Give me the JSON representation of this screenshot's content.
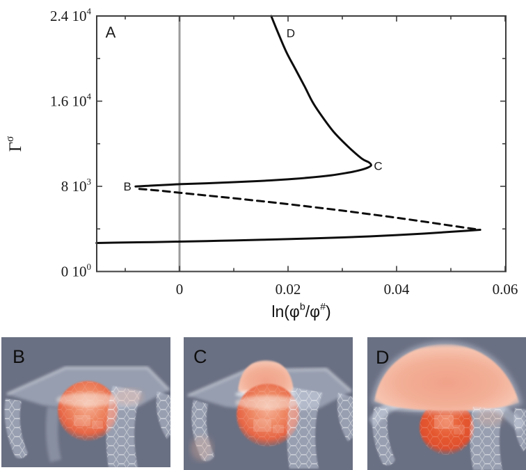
{
  "colors": {
    "background": "#ffffff",
    "curve": "#0d0d0d",
    "zero_line": "#9b9b9b",
    "frame": "#3c3c3c",
    "panel_background": "#6a7083",
    "droplet_red": "#e66545",
    "droplet_light": "#f6b197",
    "membrane": "#d5ddec"
  },
  "chart_data": {
    "type": "line",
    "title": "",
    "xlabel": "ln(φ^{b}/φ^{#})",
    "ylabel": "Γ^{σ}",
    "xlim": [
      -0.01526,
      0.06013
    ],
    "ylim": [
      0,
      24000
    ],
    "grid": false,
    "legend": "none",
    "vline_x": 0,
    "x_ticks": {
      "values": [
        0,
        0.02,
        0.04,
        0.06
      ],
      "labels": [
        "0",
        "0.02",
        "0.04",
        "0.06"
      ]
    },
    "x_minor_ticks": [
      -0.01,
      0.01,
      0.03,
      0.05
    ],
    "y_ticks": {
      "values": [
        0,
        8000,
        16000,
        24000
      ],
      "labels": [
        "0 10^{0}",
        "8 10^{3}",
        "1.6 10^{4}",
        "2.4 10^{4}"
      ]
    },
    "y_minor_ticks": [
      4000,
      12000,
      20000
    ],
    "series": [
      {
        "name": "stable-lower-branch",
        "style": "solid",
        "points": [
          [
            -0.0153,
            2680
          ],
          [
            -0.01,
            2725
          ],
          [
            -0.005,
            2765
          ],
          [
            0,
            2810
          ],
          [
            0.005,
            2860
          ],
          [
            0.01,
            2915
          ],
          [
            0.015,
            2975
          ],
          [
            0.02,
            3040
          ],
          [
            0.025,
            3115
          ],
          [
            0.03,
            3200
          ],
          [
            0.035,
            3300
          ],
          [
            0.04,
            3420
          ],
          [
            0.045,
            3560
          ],
          [
            0.05,
            3730
          ],
          [
            0.053,
            3830
          ],
          [
            0.0554,
            3920
          ]
        ]
      },
      {
        "name": "unstable-branch",
        "style": "dashed",
        "points": [
          [
            -0.0074,
            7760
          ],
          [
            -0.003,
            7560
          ],
          [
            0,
            7400
          ],
          [
            0.005,
            7140
          ],
          [
            0.01,
            6880
          ],
          [
            0.015,
            6610
          ],
          [
            0.02,
            6330
          ],
          [
            0.025,
            6030
          ],
          [
            0.03,
            5720
          ],
          [
            0.035,
            5390
          ],
          [
            0.04,
            5050
          ],
          [
            0.045,
            4690
          ],
          [
            0.05,
            4310
          ],
          [
            0.0554,
            3920
          ]
        ]
      },
      {
        "name": "stable-upper-branch",
        "style": "solid",
        "points": [
          [
            -0.0081,
            7990
          ],
          [
            -0.005,
            8070
          ],
          [
            0,
            8200
          ],
          [
            0.005,
            8290
          ],
          [
            0.01,
            8390
          ],
          [
            0.015,
            8510
          ],
          [
            0.02,
            8660
          ],
          [
            0.024,
            8820
          ],
          [
            0.028,
            9040
          ],
          [
            0.031,
            9280
          ],
          [
            0.033,
            9490
          ],
          [
            0.0345,
            9720
          ],
          [
            0.0353,
            9960
          ],
          [
            0.0349,
            10250
          ],
          [
            0.0336,
            10600
          ],
          [
            0.031,
            11760
          ],
          [
            0.0285,
            13060
          ],
          [
            0.0265,
            14400
          ],
          [
            0.0246,
            15840
          ],
          [
            0.0231,
            17340
          ],
          [
            0.0214,
            18970
          ],
          [
            0.0197,
            20600
          ],
          [
            0.0182,
            22370
          ],
          [
            0.0169,
            24000
          ]
        ]
      }
    ],
    "annotations": [
      {
        "text": "A",
        "x": -0.0127,
        "y": 22500,
        "size": 22
      },
      {
        "text": "B",
        "x": -0.0096,
        "y": 8000,
        "size": 17
      },
      {
        "text": "C",
        "x": 0.0366,
        "y": 9950,
        "size": 17
      },
      {
        "text": "D",
        "x": 0.0205,
        "y": 22400,
        "size": 17
      }
    ]
  },
  "panels": [
    {
      "label": "B"
    },
    {
      "label": "C"
    },
    {
      "label": "D"
    }
  ]
}
